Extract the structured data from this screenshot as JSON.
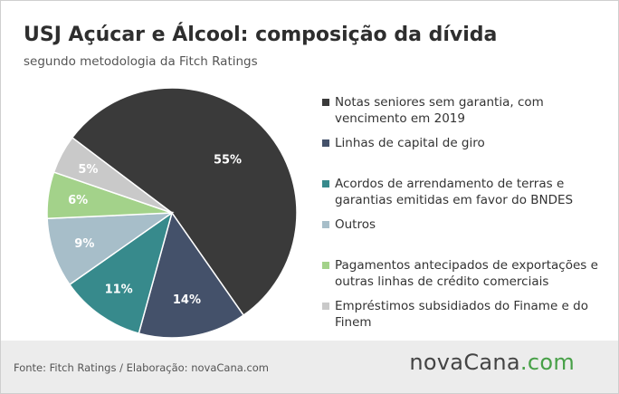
{
  "header": {
    "title": "USJ Açúcar e Álcool: composição da dívida",
    "subtitle": "segundo metodologia da Fitch Ratings"
  },
  "chart_data": {
    "type": "pie",
    "title": "USJ Açúcar e Álcool: composição da dívida",
    "subtitle": "segundo metodologia da Fitch Ratings",
    "legend_position": "right",
    "slices": [
      {
        "name": "Notas seniores sem garantia, com vencimento em 2019",
        "value": 55,
        "label": "55%",
        "color": "#3a3a3a"
      },
      {
        "name": "Linhas de capital de giro",
        "value": 14,
        "label": "14%",
        "color": "#44516a"
      },
      {
        "name": "Acordos de arrendamento de terras e garantias emitidas em favor do BNDES",
        "value": 11,
        "label": "11%",
        "color": "#378a8c"
      },
      {
        "name": "Outros",
        "value": 9,
        "label": "9%",
        "color": "#a7bec9"
      },
      {
        "name": "Pagamentos antecipados de exportações e outras linhas de crédito comerciais",
        "value": 6,
        "label": "6%",
        "color": "#a3d28a"
      },
      {
        "name": "Empréstimos subsidiados do Finame e do Finem",
        "value": 5,
        "label": "5%",
        "color": "#c9c9c9"
      }
    ]
  },
  "footer": {
    "source": "Fonte: Fitch Ratings / Elaboração: novaCana.com",
    "logo_main": "novaCana",
    "logo_suffix": ".com"
  }
}
